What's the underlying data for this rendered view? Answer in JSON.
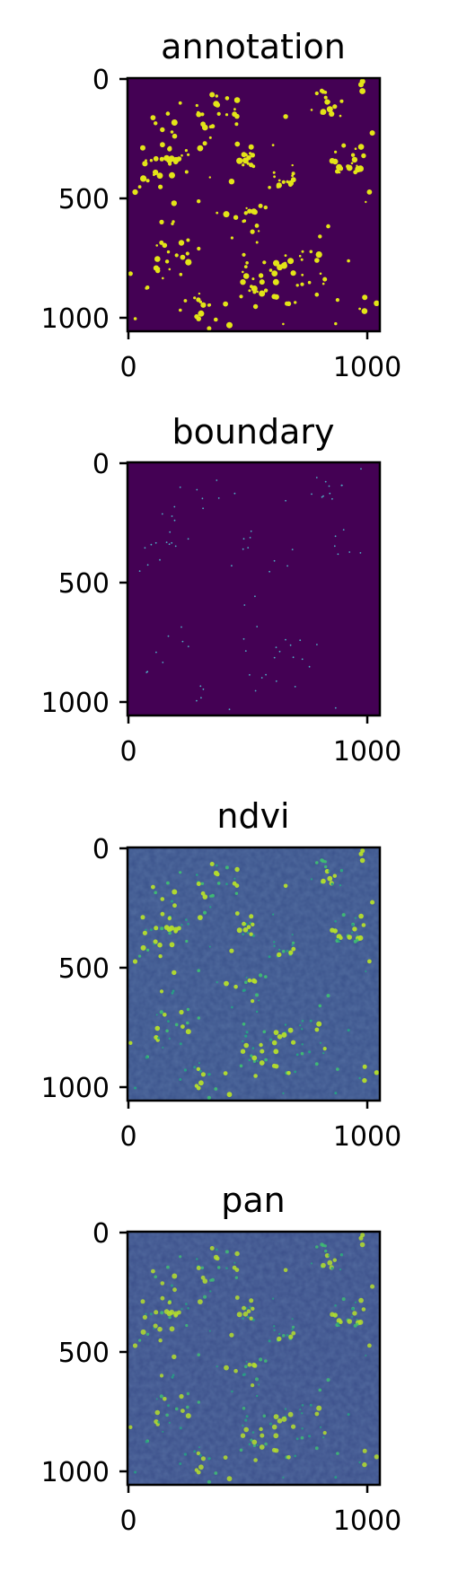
{
  "figure": {
    "panel_count": 4,
    "colormap": "viridis",
    "colors": {
      "viridis_dark": "#440154",
      "viridis_blue": "#3b528b",
      "viridis_teal": "#21918c",
      "viridis_green": "#5ec962",
      "viridis_yellow": "#fde725"
    }
  },
  "chart_data": [
    {
      "type": "heatmap",
      "title": "annotation",
      "xlabel": "",
      "ylabel": "",
      "xlim": [
        0,
        1060
      ],
      "ylim": [
        1060,
        0
      ],
      "x_ticks": [
        0,
        1000
      ],
      "y_ticks": [
        0,
        500,
        1000
      ],
      "x_tick_labels": [
        "0",
        "1000"
      ],
      "y_tick_labels": [
        "0",
        "500",
        "1000"
      ],
      "colormap": "viridis",
      "value_range": [
        0,
        1
      ],
      "description_of_content": "binary mask of scattered yellow blobs on purple background"
    },
    {
      "type": "heatmap",
      "title": "boundary",
      "xlabel": "",
      "ylabel": "",
      "xlim": [
        0,
        1060
      ],
      "ylim": [
        1060,
        0
      ],
      "x_ticks": [
        0,
        1000
      ],
      "y_ticks": [
        0,
        500,
        1000
      ],
      "x_tick_labels": [
        "0",
        "1000"
      ],
      "y_tick_labels": [
        "0",
        "500",
        "1000"
      ],
      "colormap": "viridis",
      "value_range": [
        0,
        1
      ]
    },
    {
      "type": "heatmap",
      "title": "ndvi",
      "xlabel": "",
      "ylabel": "",
      "xlim": [
        0,
        1060
      ],
      "ylim": [
        1060,
        0
      ],
      "x_ticks": [
        0,
        1000
      ],
      "y_ticks": [
        0,
        500,
        1000
      ],
      "x_tick_labels": [
        "0",
        "1000"
      ],
      "y_tick_labels": [
        "0",
        "500",
        "1000"
      ],
      "colormap": "viridis"
    },
    {
      "type": "heatmap",
      "title": "pan",
      "xlabel": "",
      "ylabel": "",
      "xlim": [
        0,
        1060
      ],
      "ylim": [
        1060,
        0
      ],
      "x_ticks": [
        0,
        1000
      ],
      "y_ticks": [
        0,
        500,
        1000
      ],
      "x_tick_labels": [
        "0",
        "1000"
      ],
      "y_tick_labels": [
        "0",
        "500",
        "1000"
      ],
      "colormap": "viridis"
    }
  ]
}
